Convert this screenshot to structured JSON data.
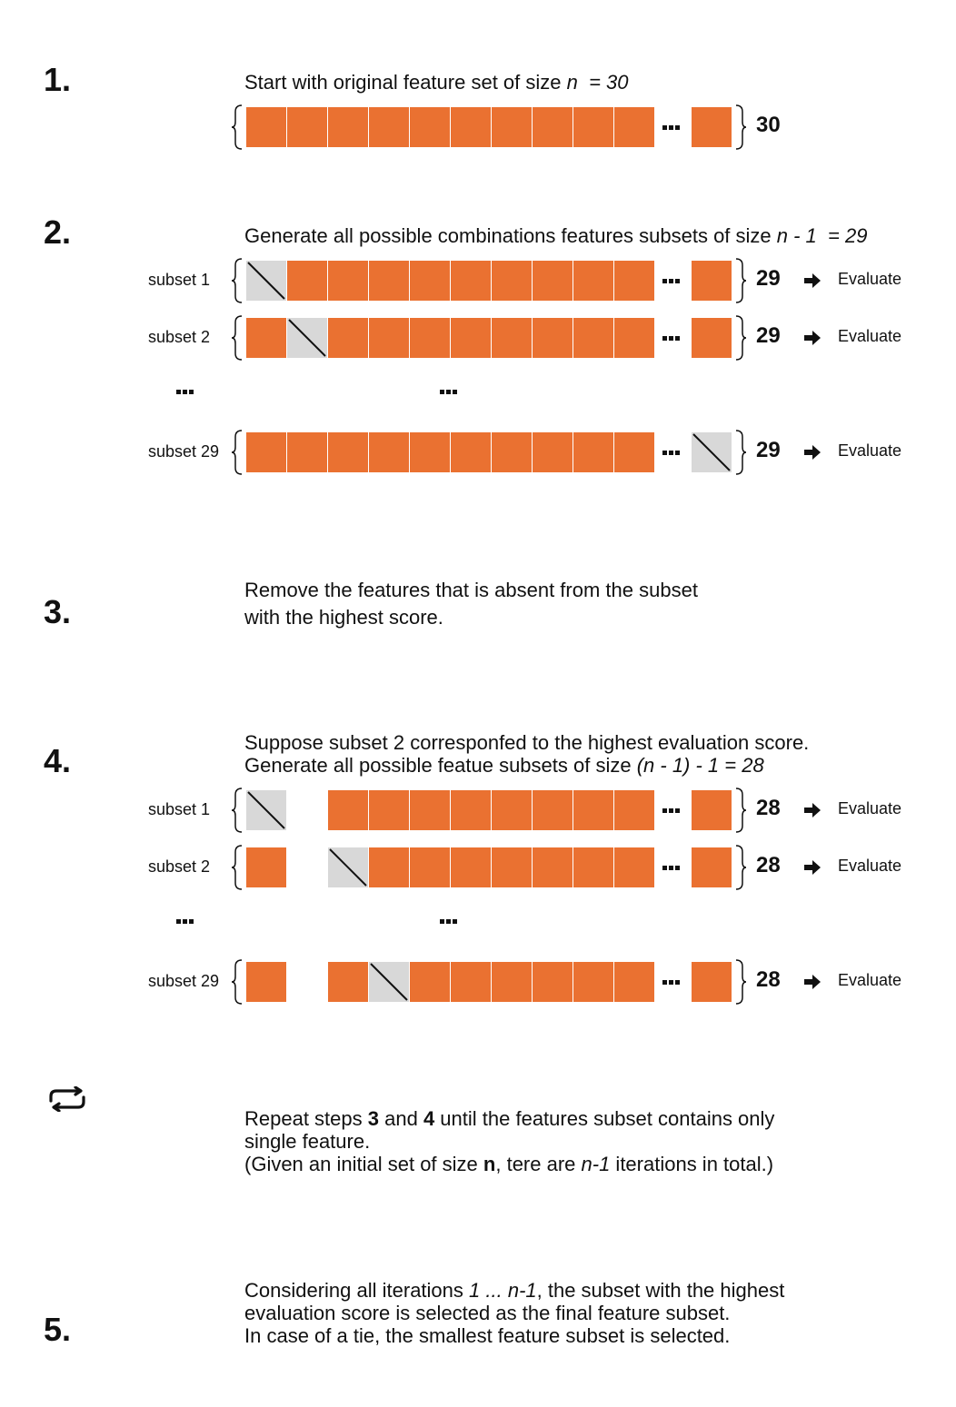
{
  "steps": {
    "s1": {
      "number": "1.",
      "text_before": "Start with original feature set of size ",
      "n": "n",
      "eq": "  = 30"
    },
    "s2": {
      "number": "2.",
      "text_before": "Generate all possible combinations features subsets of size ",
      "expr": "n - 1  = 29"
    },
    "s3": {
      "number": "3.",
      "line1": "Remove the features that is absent from the subset",
      "line2": "with the highest score."
    },
    "s4": {
      "number": "4.",
      "line1": "Suppose subset 2 corresponfed to the highest evaluation score.",
      "line2_before": "Generate all possible featue subsets of size ",
      "expr": "(n - 1) - 1 = 28"
    },
    "repeat": {
      "icon": "repeat-icon",
      "line1_a": "Repeat steps ",
      "line1_b": "3",
      "line1_c": " and ",
      "line1_d": "4",
      "line1_e": " until the features subset contains only",
      "line2": "single feature.",
      "line3_a": "(Given an initial set of size ",
      "line3_b": "n",
      "line3_c": ", tere are ",
      "line3_d": "n-1",
      "line3_e": " iterations in total.)"
    },
    "s5": {
      "number": "5.",
      "line1_a": "Considering all iterations ",
      "line1_b": "1 ... n-1",
      "line1_c": ", the subset with the highest",
      "line2": "evaluation score is selected as the final feature subset.",
      "line3": "In case of a tie, the smallest feature subset is selected."
    }
  },
  "original_set": {
    "count": "30"
  },
  "step2_rows": [
    {
      "label": "subset 1",
      "count": "29",
      "action": "Evaluate"
    },
    {
      "label": "subset 2",
      "count": "29",
      "action": "Evaluate"
    },
    {
      "label": "subset 29",
      "count": "29",
      "action": "Evaluate"
    }
  ],
  "step4_rows": [
    {
      "label": "subset 1",
      "count": "28",
      "action": "Evaluate"
    },
    {
      "label": "subset 2",
      "count": "28",
      "action": "Evaluate"
    },
    {
      "label": "subset 29",
      "count": "28",
      "action": "Evaluate"
    }
  ],
  "colors": {
    "feature": "#ea7131",
    "removed": "#d8d8d8"
  }
}
